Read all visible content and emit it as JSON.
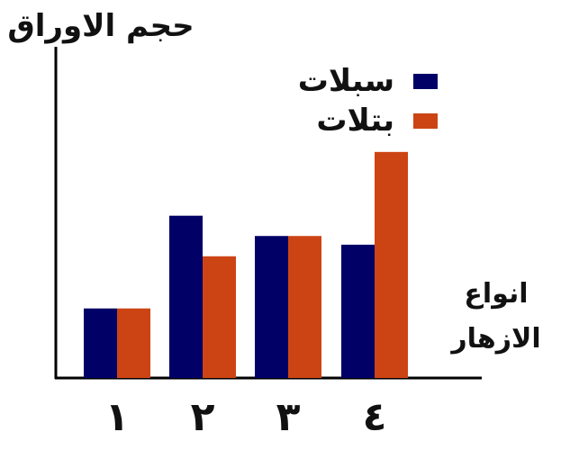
{
  "chart_data": {
    "type": "bar",
    "title": "",
    "ylabel": "حجم الاوراق",
    "xlabel": [
      "انواع",
      "الازهار"
    ],
    "categories": [
      "١",
      "٢",
      "٣",
      "٤"
    ],
    "ylim": [
      0,
      100
    ],
    "grid": false,
    "legend_position": "top-right",
    "series": [
      {
        "name": "سبلات",
        "color": "#000066",
        "values": [
          24,
          56,
          49,
          46
        ]
      },
      {
        "name": "بتلات",
        "color": "#cc4414",
        "values": [
          24,
          42,
          49,
          78
        ]
      }
    ]
  }
}
